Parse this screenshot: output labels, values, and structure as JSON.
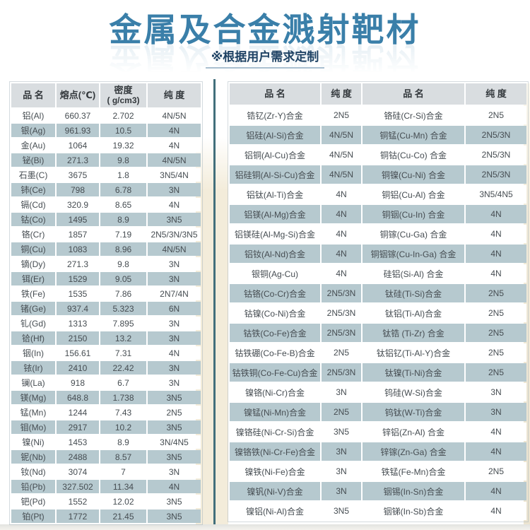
{
  "header": {
    "title": "金属及合金溅射靶材",
    "subtitle": "※根据用户需求定制"
  },
  "colors": {
    "accent": "#3a7fa9",
    "subtitle": "#1e4264",
    "stripe": "#b6c9cf",
    "header_bg": "#d9dde0",
    "divider": "#426f7b",
    "backdrop": "#f3ecda"
  },
  "left_table": {
    "columns": [
      "品 名",
      "熔点(℃)",
      "密度\n( g/cm3)",
      "纯 度"
    ],
    "rows": [
      [
        "铝(Al)",
        "660.37",
        "2.702",
        "4N/5N"
      ],
      [
        "银(Ag)",
        "961.93",
        "10.5",
        "4N"
      ],
      [
        "金(Au)",
        "1064",
        "19.32",
        "4N"
      ],
      [
        "铋(Bi)",
        "271.3",
        "9.8",
        "4N/5N"
      ],
      [
        "石墨(C)",
        "3675",
        "1.8",
        "3N5/4N"
      ],
      [
        "铈(Ce)",
        "798",
        "6.78",
        "3N"
      ],
      [
        "镉(Cd)",
        "320.9",
        "8.65",
        "4N"
      ],
      [
        "钴(Co)",
        "1495",
        "8.9",
        "3N5"
      ],
      [
        "铬(Cr)",
        "1857",
        "7.19",
        "2N5/3N/3N5"
      ],
      [
        "铜(Cu)",
        "1083",
        "8.96",
        "4N/5N"
      ],
      [
        "镝(Dy)",
        "271.3",
        "9.8",
        "3N"
      ],
      [
        "铒(Er)",
        "1529",
        "9.05",
        "3N"
      ],
      [
        "铁(Fe)",
        "1535",
        "7.86",
        "2N7/4N"
      ],
      [
        "锗(Ge)",
        "937.4",
        "5.323",
        "6N"
      ],
      [
        "钆(Gd)",
        "1313",
        "7.895",
        "3N"
      ],
      [
        "铪(Hf)",
        "2150",
        "13.2",
        "3N"
      ],
      [
        "铟(In)",
        "156.61",
        "7.31",
        "4N"
      ],
      [
        "铱(Ir)",
        "2410",
        "22.42",
        "3N"
      ],
      [
        "镧(La)",
        "918",
        "6.7",
        "3N"
      ],
      [
        "镁(Mg)",
        "648.8",
        "1.738",
        "3N5"
      ],
      [
        "锰(Mn)",
        "1244",
        "7.43",
        "2N5"
      ],
      [
        "钼(Mo)",
        "2917",
        "10.2",
        "3N5"
      ],
      [
        "镍(Ni)",
        "1453",
        "8.9",
        "3N/4N5"
      ],
      [
        "铌(Nb)",
        "2488",
        "8.57",
        "3N5"
      ],
      [
        "钕(Nd)",
        "3074",
        "7",
        "3N"
      ],
      [
        "铅(Pb)",
        "327.502",
        "11.34",
        "4N"
      ],
      [
        "钯(Pd)",
        "1552",
        "12.02",
        "3N5"
      ],
      [
        "铂(Pt)",
        "1772",
        "21.45",
        "3N5"
      ]
    ]
  },
  "right_table": {
    "columns": [
      "品 名",
      "纯 度",
      "品 名",
      "纯 度"
    ],
    "rows": [
      [
        "锆钇(Zr-Y)合金",
        "2N5",
        "铬硅(Cr-Si)合金",
        "2N5"
      ],
      [
        "铝硅(Al-Si)合金",
        "4N/5N",
        "铜锰(Cu-Mn) 合金",
        "2N5/3N"
      ],
      [
        "铝铜(Al-Cu)合金",
        "4N/5N",
        "铜钴(Cu-Co) 合金",
        "2N5/3N"
      ],
      [
        "铝硅铜(Al-Si-Cu)合金",
        "4N/5N",
        "铜镍(Cu-Ni) 合金",
        "2N5/3N"
      ],
      [
        "铝钛(Al-Ti)合金",
        "4N",
        "铜铝(Cu-Al) 合金",
        "3N5/4N5"
      ],
      [
        "铝镁(Al-Mg)合金",
        "4N",
        "铜铟(Cu-In) 合金",
        "4N"
      ],
      [
        "铝镁硅(Al-Mg-Si)合金",
        "4N",
        "铜镓(Cu-Ga) 合金",
        "4N"
      ],
      [
        "铝钕(Al-Nd)合金",
        "4N",
        "铜铟镓(Cu-In-Ga) 合金",
        "4N"
      ],
      [
        "银铜(Ag-Cu)",
        "4N",
        "硅铝(Si-Al) 合金",
        "4N"
      ],
      [
        "钴铬(Co-Cr)合金",
        "2N5/3N",
        "钛硅(Ti-Si)合金",
        "2N5"
      ],
      [
        "钴镍(Co-Ni)合金",
        "2N5/3N",
        "钛铝(Ti-Al)合金",
        "2N5"
      ],
      [
        "钴铁(Co-Fe)合金",
        "2N5/3N",
        "钛锆 (Ti-Zr) 合金",
        "2N5"
      ],
      [
        "钴铁硼(Co-Fe-B)合金",
        "2N5",
        "钛铝钇(Ti-Al-Y)合金",
        "2N5"
      ],
      [
        "钴铁铜(Co-Fe-Cu)合金",
        "2N5/3N",
        "钛镍(Ti-Ni)合金",
        "2N5"
      ],
      [
        "镍铬(Ni-Cr)合金",
        "3N",
        "钨硅(W-Si)合金",
        "3N"
      ],
      [
        "镍锰(Ni-Mn)合金",
        "2N5",
        "钨钛(W-Ti)合金",
        "3N"
      ],
      [
        "镍铬硅(Ni-Cr-Si)合金",
        "3N5",
        "锌铝(Zn-Al) 合金",
        "4N"
      ],
      [
        "镍铬铁(Ni-Cr-Fe)合金",
        "3N",
        "锌镓(Zn-Ga) 合金",
        "4N"
      ],
      [
        "镍铁(Ni-Fe)合金",
        "3N",
        "铁锰(Fe-Mn)合金",
        "2N5"
      ],
      [
        "镍钒(Ni-V)合金",
        "3N",
        "铟锡(In-Sn)合金",
        "4N"
      ],
      [
        "镍铝(Ni-Al)合金",
        "3N5",
        "铟锑(In-Sb)合金",
        "4N"
      ]
    ]
  }
}
